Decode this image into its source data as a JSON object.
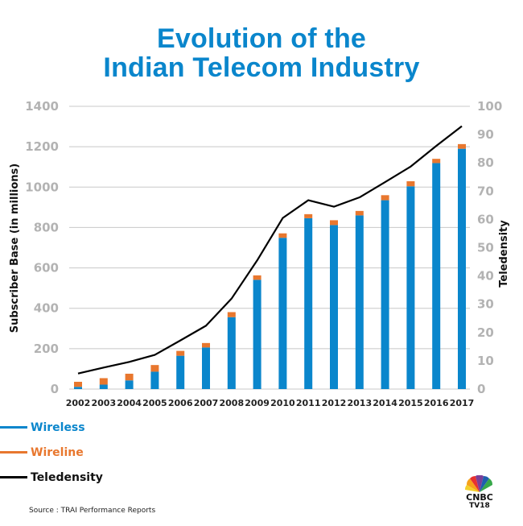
{
  "header": {
    "title_line1": "Evolution of the",
    "title_line2": "Indian Telecom Industry"
  },
  "colors": {
    "title": "#0a86cc",
    "wireless": "#0a86cc",
    "wireline": "#e8772e",
    "teledensity": "#000000",
    "gridline": "#c8c8c8",
    "tick_label": "#b3b3b3"
  },
  "chart_data": {
    "type": "bar",
    "stacked": true,
    "title": "Evolution of the Indian Telecom Industry",
    "categories": [
      "2002",
      "2003",
      "2004",
      "2005",
      "2006",
      "2007",
      "2008",
      "2009",
      "2010",
      "2011",
      "2012",
      "2013",
      "2014",
      "2015",
      "2016",
      "2017"
    ],
    "series": [
      {
        "name": "Wireless",
        "type": "bar",
        "axis": "left",
        "values": [
          11,
          22,
          43,
          86,
          165,
          206,
          356,
          541,
          749,
          846,
          812,
          860,
          935,
          1004,
          1119,
          1190
        ]
      },
      {
        "name": "Wireline",
        "type": "bar",
        "axis": "left",
        "values": [
          25,
          32,
          33,
          33,
          24,
          22,
          25,
          22,
          22,
          20,
          24,
          22,
          25,
          25,
          21,
          23
        ]
      },
      {
        "name": "Teledensity",
        "type": "line",
        "axis": "right",
        "values": [
          5.5,
          7.6,
          9.6,
          12.1,
          17.2,
          22.4,
          32.0,
          45.5,
          60.5,
          66.8,
          64.5,
          67.8,
          73.2,
          78.7,
          86.0,
          93.0
        ]
      }
    ],
    "ylabel": "Subscriber Base (in millions)",
    "ylabel_right": "Teledensity",
    "xlabel": "",
    "ylim": [
      0,
      1400
    ],
    "ylim_right": [
      0,
      100
    ],
    "yticks": [
      0,
      200,
      400,
      600,
      800,
      1000,
      1200,
      1400
    ],
    "yticks_right": [
      0,
      10,
      20,
      30,
      40,
      50,
      60,
      70,
      80,
      90,
      100
    ],
    "grid": true,
    "legend_position": "bottom-left"
  },
  "legend": [
    {
      "label": "Wireless",
      "key": "wireless"
    },
    {
      "label": "Wireline",
      "key": "wireline"
    },
    {
      "label": "Teledensity",
      "key": "teledensity"
    }
  ],
  "footer": {
    "source": "Source : TRAI Performance Reports",
    "logo_line1": "CNBC",
    "logo_line2": "TV18"
  }
}
